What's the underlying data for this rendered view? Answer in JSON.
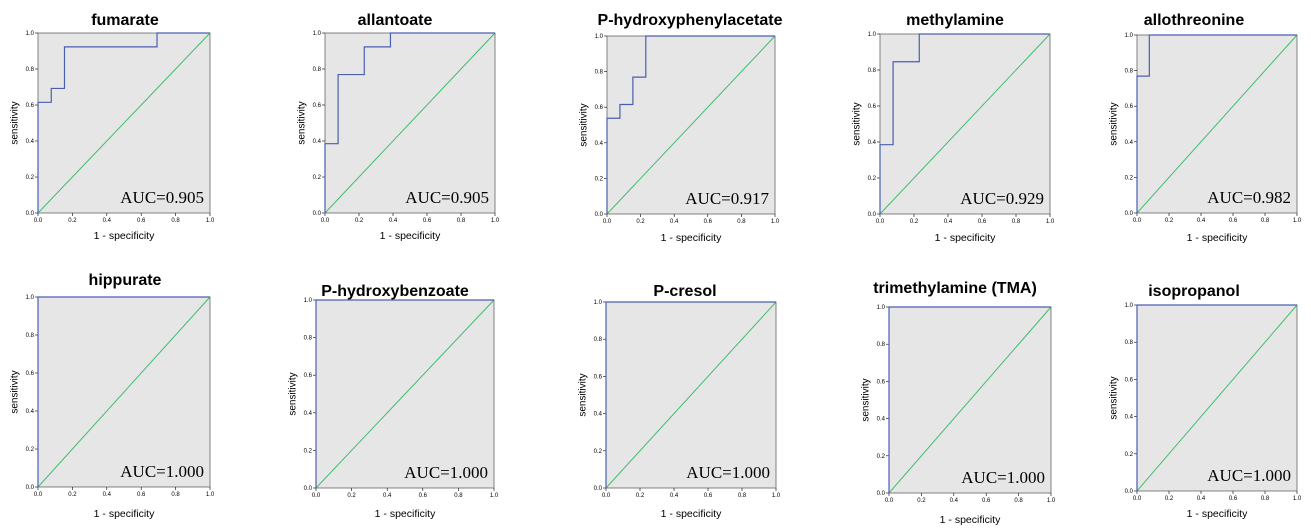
{
  "chart_data": [
    {
      "type": "line",
      "title": "fumarate",
      "xlabel": "1 - specificity",
      "ylabel": "sensitivity",
      "xlim": [
        0,
        1
      ],
      "ylim": [
        0,
        1
      ],
      "annotation": "AUC=0.905",
      "x_ticks": [
        "0.0",
        "0.2",
        "0.4",
        "0.6",
        "0.8",
        "1.0"
      ],
      "y_ticks": [
        "0.0",
        "0.2",
        "0.4",
        "0.6",
        "0.8",
        "1.0"
      ],
      "roc_x": [
        0,
        0,
        0.077,
        0.077,
        0.154,
        0.154,
        0.692,
        0.692,
        1.0
      ],
      "roc_y": [
        0,
        0.615,
        0.615,
        0.692,
        0.692,
        0.923,
        0.923,
        1.0,
        1.0
      ]
    },
    {
      "type": "line",
      "title": "allantoate",
      "xlabel": "1 - specificity",
      "ylabel": "sensitivity",
      "xlim": [
        0,
        1
      ],
      "ylim": [
        0,
        1
      ],
      "annotation": "AUC=0.905",
      "x_ticks": [
        "0.0",
        "0.2",
        "0.4",
        "0.6",
        "0.8",
        "1.0"
      ],
      "y_ticks": [
        "0.0",
        "0.2",
        "0.4",
        "0.6",
        "0.8",
        "1.0"
      ],
      "roc_x": [
        0,
        0,
        0.077,
        0.077,
        0.231,
        0.231,
        0.385,
        0.385,
        1.0
      ],
      "roc_y": [
        0,
        0.385,
        0.385,
        0.769,
        0.769,
        0.923,
        0.923,
        1.0,
        1.0
      ]
    },
    {
      "type": "line",
      "title": "P-hydroxyphenylacetate",
      "xlabel": "1 - specificity",
      "ylabel": "sensitivity",
      "xlim": [
        0,
        1
      ],
      "ylim": [
        0,
        1
      ],
      "annotation": "AUC=0.917",
      "x_ticks": [
        "0.0",
        "0.2",
        "0.4",
        "0.6",
        "0.8",
        "1.0"
      ],
      "y_ticks": [
        "0.0",
        "0.2",
        "0.4",
        "0.6",
        "0.8",
        "1.0"
      ],
      "roc_x": [
        0,
        0,
        0.077,
        0.077,
        0.154,
        0.154,
        0.231,
        0.231,
        1.0
      ],
      "roc_y": [
        0,
        0.538,
        0.538,
        0.615,
        0.615,
        0.769,
        0.769,
        1.0,
        1.0
      ]
    },
    {
      "type": "line",
      "title": "methylamine",
      "xlabel": "1 - specificity",
      "ylabel": "sensitivity",
      "xlim": [
        0,
        1
      ],
      "ylim": [
        0,
        1
      ],
      "annotation": "AUC=0.929",
      "x_ticks": [
        "0.0",
        "0.2",
        "0.4",
        "0.6",
        "0.8",
        "1.0"
      ],
      "y_ticks": [
        "0.0",
        "0.2",
        "0.4",
        "0.6",
        "0.8",
        "1.0"
      ],
      "roc_x": [
        0,
        0,
        0.077,
        0.077,
        0.231,
        0.231,
        1.0
      ],
      "roc_y": [
        0,
        0.385,
        0.385,
        0.846,
        0.846,
        1.0,
        1.0
      ]
    },
    {
      "type": "line",
      "title": "allothreonine",
      "xlabel": "1 - specificity",
      "ylabel": "sensitivity",
      "xlim": [
        0,
        1
      ],
      "ylim": [
        0,
        1
      ],
      "annotation": "AUC=0.982",
      "x_ticks": [
        "0.0",
        "0.2",
        "0.4",
        "0.6",
        "0.8",
        "1.0"
      ],
      "y_ticks": [
        "0.0",
        "0.2",
        "0.4",
        "0.6",
        "0.8",
        "1.0"
      ],
      "roc_x": [
        0,
        0,
        0.077,
        0.077,
        1.0
      ],
      "roc_y": [
        0,
        0.769,
        0.769,
        1.0,
        1.0
      ]
    },
    {
      "type": "line",
      "title": "hippurate",
      "xlabel": "1 - specificity",
      "ylabel": "sensitivity",
      "xlim": [
        0,
        1
      ],
      "ylim": [
        0,
        1
      ],
      "annotation": "AUC=1.000",
      "x_ticks": [
        "0.0",
        "0.2",
        "0.4",
        "0.6",
        "0.8",
        "1.0"
      ],
      "y_ticks": [
        "0.0",
        "0.2",
        "0.4",
        "0.6",
        "0.8",
        "1.0"
      ],
      "roc_x": [
        0,
        0,
        1.0
      ],
      "roc_y": [
        0,
        1.0,
        1.0
      ]
    },
    {
      "type": "line",
      "title": "P-hydroxybenzoate",
      "xlabel": "1 - specificity",
      "ylabel": "sensitivity",
      "xlim": [
        0,
        1
      ],
      "ylim": [
        0,
        1
      ],
      "annotation": "AUC=1.000",
      "x_ticks": [
        "0.0",
        "0.2",
        "0.4",
        "0.6",
        "0.8",
        "1.0"
      ],
      "y_ticks": [
        "0.0",
        "0.2",
        "0.4",
        "0.6",
        "0.8",
        "1.0"
      ],
      "roc_x": [
        0,
        0,
        1.0
      ],
      "roc_y": [
        0,
        1.0,
        1.0
      ]
    },
    {
      "type": "line",
      "title": "P-cresol",
      "xlabel": "1 - specificity",
      "ylabel": "sensitivity",
      "xlim": [
        0,
        1
      ],
      "ylim": [
        0,
        1
      ],
      "annotation": "AUC=1.000",
      "x_ticks": [
        "0.0",
        "0.2",
        "0.4",
        "0.6",
        "0.8",
        "1.0"
      ],
      "y_ticks": [
        "0.0",
        "0.2",
        "0.4",
        "0.6",
        "0.8",
        "1.0"
      ],
      "roc_x": [
        0,
        0,
        1.0
      ],
      "roc_y": [
        0,
        1.0,
        1.0
      ]
    },
    {
      "type": "line",
      "title": "trimethylamine (TMA)",
      "xlabel": "1 - specificity",
      "ylabel": "sensitivity",
      "xlim": [
        0,
        1
      ],
      "ylim": [
        0,
        1
      ],
      "annotation": "AUC=1.000",
      "x_ticks": [
        "0.0",
        "0.2",
        "0.4",
        "0.6",
        "0.8",
        "1.0"
      ],
      "y_ticks": [
        "0.0",
        "0.2",
        "0.4",
        "0.6",
        "0.8",
        "1.0"
      ],
      "roc_x": [
        0,
        0,
        1.0
      ],
      "roc_y": [
        0,
        1.0,
        1.0
      ]
    },
    {
      "type": "line",
      "title": "isopropanol",
      "xlabel": "1 - specificity",
      "ylabel": "sensitivity",
      "xlim": [
        0,
        1
      ],
      "ylim": [
        0,
        1
      ],
      "annotation": "AUC=1.000",
      "x_ticks": [
        "0.0",
        "0.2",
        "0.4",
        "0.6",
        "0.8",
        "1.0"
      ],
      "y_ticks": [
        "0.0",
        "0.2",
        "0.4",
        "0.6",
        "0.8",
        "1.0"
      ],
      "roc_x": [
        0,
        0,
        1.0
      ],
      "roc_y": [
        0,
        1.0,
        1.0
      ]
    }
  ],
  "colors": {
    "plot_background": "#e6e6e6",
    "roc_curve": "#4a5fb0",
    "reference_line": "#3fbf6f",
    "frame": "#666666"
  }
}
